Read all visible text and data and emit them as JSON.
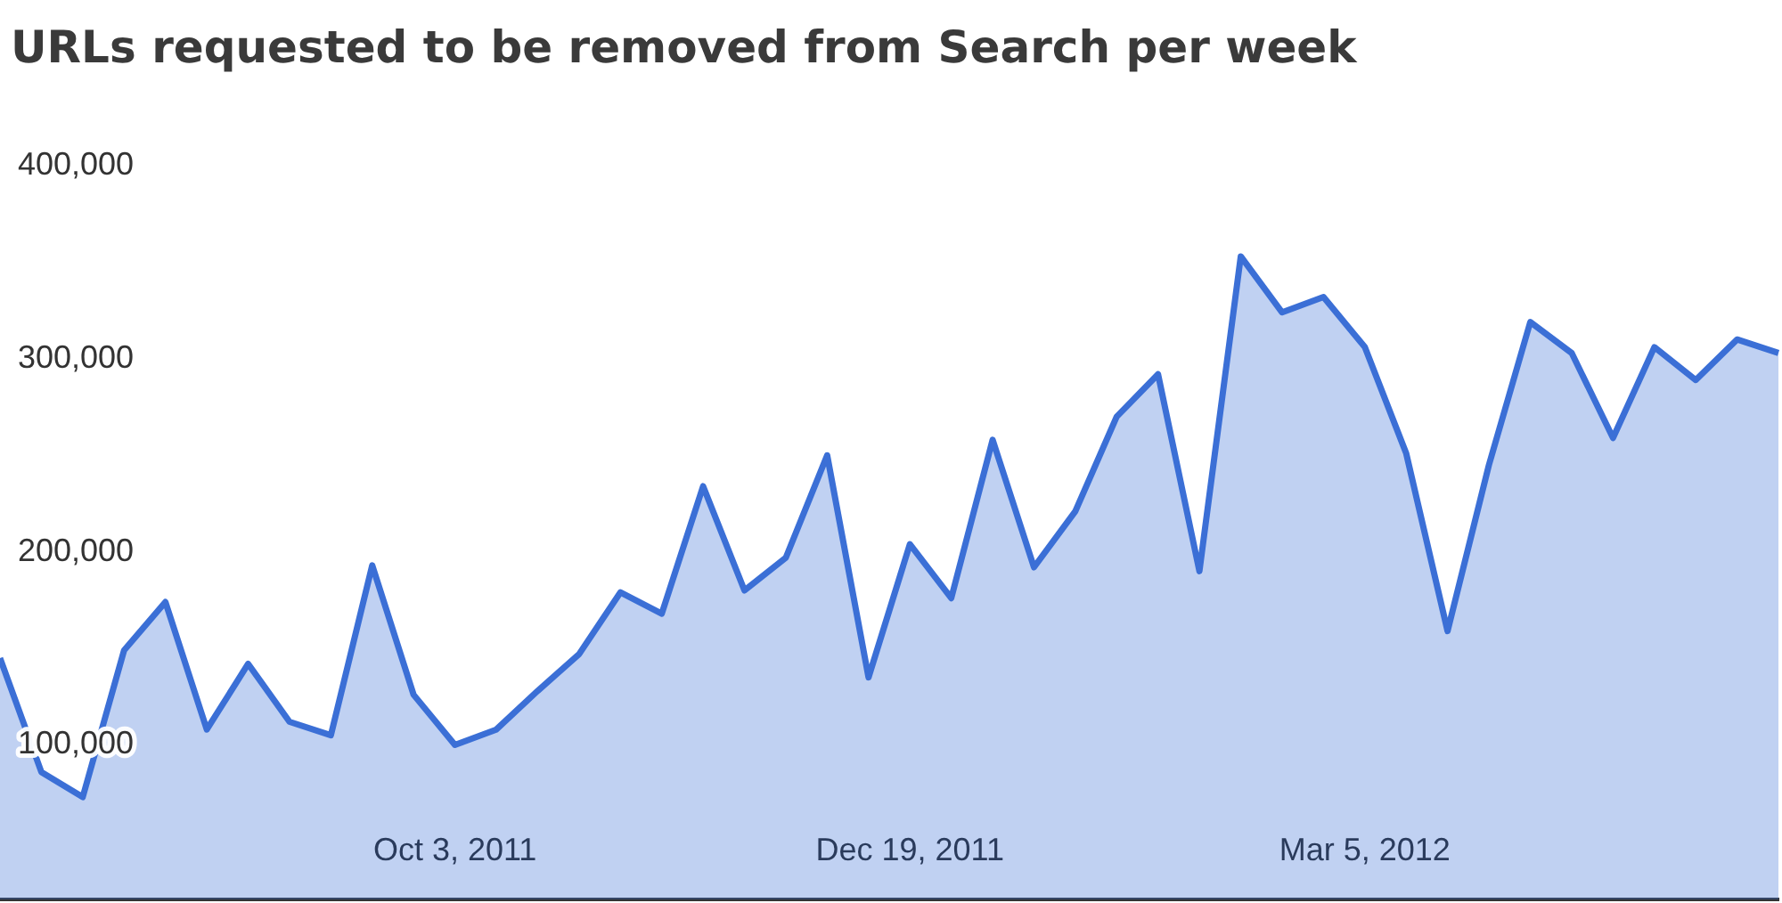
{
  "chart_data": {
    "type": "area",
    "title": "URLs requested to be removed from Search per week",
    "categories": [
      null,
      null,
      null,
      null,
      null,
      null,
      null,
      null,
      null,
      null,
      null,
      "Oct 3, 2011",
      null,
      null,
      null,
      null,
      null,
      null,
      null,
      null,
      null,
      null,
      "Dec 19, 2011",
      null,
      null,
      null,
      null,
      null,
      null,
      null,
      null,
      null,
      null,
      "Mar 5, 2012",
      null,
      null,
      null,
      null,
      null,
      null,
      null,
      null,
      null,
      null
    ],
    "series": [
      {
        "color": "#3b6fd6",
        "values": [
          145000,
          86000,
          73000,
          149000,
          174000,
          108000,
          142000,
          112000,
          105000,
          193000,
          126000,
          100000,
          108000,
          128000,
          147000,
          179000,
          168000,
          234000,
          180000,
          197000,
          250000,
          135000,
          204000,
          176000,
          258000,
          192000,
          221000,
          270000,
          292000,
          190000,
          353000,
          324000,
          332000,
          306000,
          251000,
          159000,
          245000,
          319000,
          303000,
          259000,
          306000,
          289000,
          310000,
          303000
        ]
      }
    ],
    "ylim": [
      20000,
      400000
    ],
    "yticks": [
      {
        "value": 100000,
        "label": "100,000"
      },
      {
        "value": 200000,
        "label": "200,000"
      },
      {
        "value": 300000,
        "label": "300,000"
      },
      {
        "value": 400000,
        "label": "400,000"
      }
    ]
  }
}
